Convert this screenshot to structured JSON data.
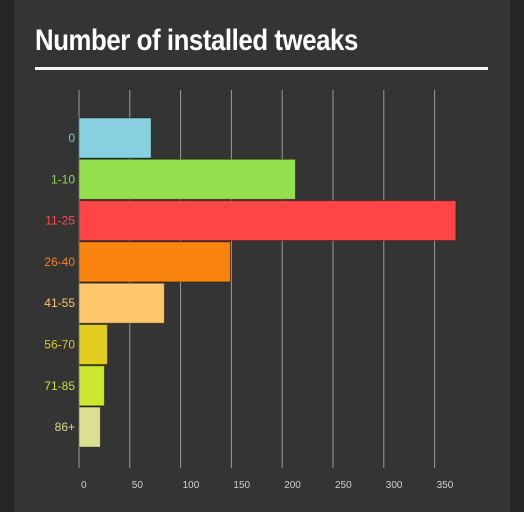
{
  "chart_data": {
    "type": "bar",
    "orientation": "horizontal",
    "title": "Number of installed tweaks",
    "xlabel": "",
    "ylabel": "",
    "xlim": [
      0,
      375
    ],
    "grid": true,
    "ticks": [
      "0",
      "50",
      "100",
      "150",
      "200",
      "250",
      "300",
      "350"
    ],
    "tick_values": [
      0,
      50,
      100,
      150,
      200,
      250,
      300,
      350
    ],
    "categories": [
      "0",
      "1-10",
      "11-25",
      "26-40",
      "41-55",
      "56-70",
      "71-85",
      "86+"
    ],
    "values": [
      71,
      213,
      371,
      149,
      84,
      28,
      25,
      21
    ],
    "colors": [
      "#88d0e0",
      "#95e04f",
      "#ff4545",
      "#f8830e",
      "#ffc76b",
      "#e1cc20",
      "#cde631",
      "#dcdf92"
    ],
    "label_colors": [
      "#7cc6d6",
      "#8fd94c",
      "#ff4b4b",
      "#f0821e",
      "#ffc466",
      "#dcc623",
      "#c8df3a",
      "#d6d690"
    ]
  }
}
